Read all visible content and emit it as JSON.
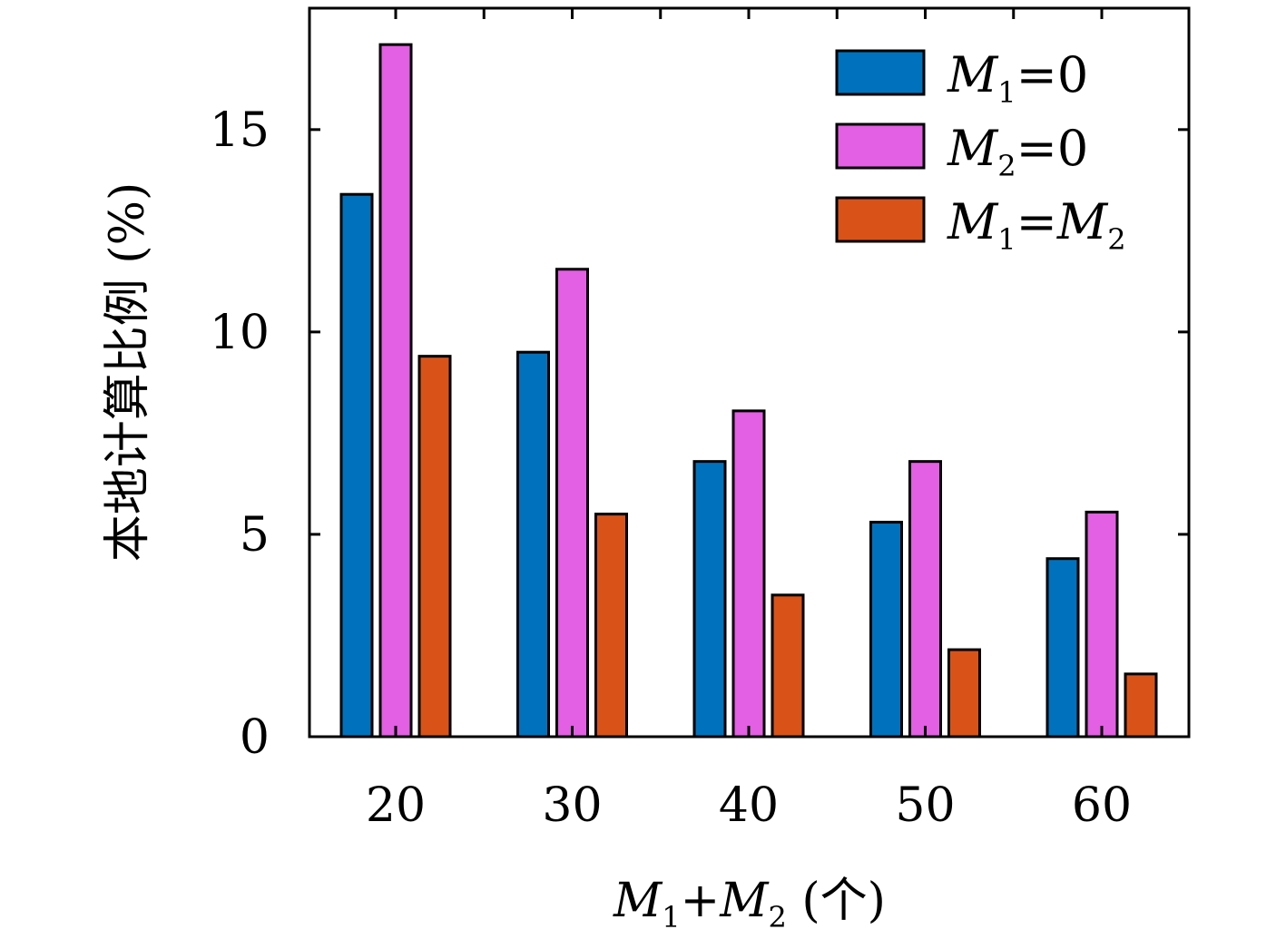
{
  "chart_data": {
    "type": "bar",
    "categories": [
      "20",
      "30",
      "40",
      "50",
      "60"
    ],
    "series": [
      {
        "name": "M1=0",
        "color": "#0072BD",
        "values": [
          13.4,
          9.5,
          6.8,
          5.3,
          4.4
        ]
      },
      {
        "name": "M2=0",
        "color": "#E35FE3",
        "values": [
          17.1,
          11.55,
          8.05,
          6.8,
          5.55
        ]
      },
      {
        "name": "M1=M2",
        "color": "#D95319",
        "values": [
          9.4,
          5.5,
          3.5,
          2.15,
          1.55
        ]
      }
    ],
    "xlabel": "M1+M2 (个)",
    "ylabel": "本地计算比例 (%)",
    "ylim": [
      0,
      18
    ],
    "yticks": [
      0,
      5,
      10,
      15
    ],
    "grid": false,
    "legend_position": "top-right"
  }
}
